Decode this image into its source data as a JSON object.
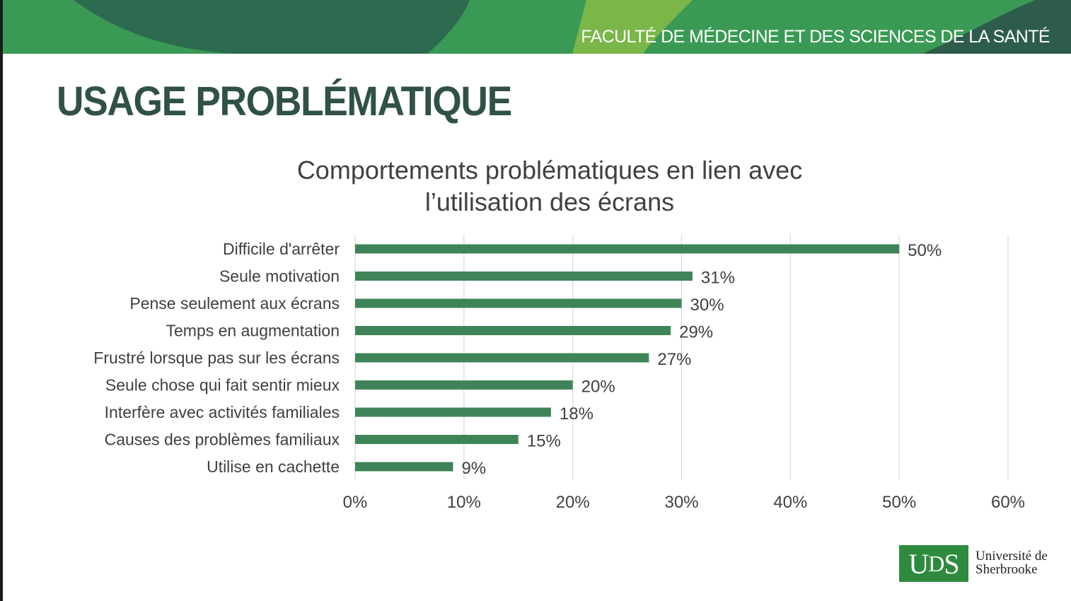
{
  "header": {
    "faculty_label": "FACULTÉ DE MÉDECINE ET DES SCIENCES DE LA SANTÉ"
  },
  "page_title": "USAGE PROBLÉMATIQUE",
  "colors": {
    "title": "#2f5148",
    "bar": "#3f8458",
    "banner_dark": "#2c6b4f",
    "banner_light": "#7ab648"
  },
  "chart_data": {
    "type": "bar",
    "orientation": "horizontal",
    "title_lines": [
      "Comportements problématiques en lien avec",
      "l’utilisation des écrans"
    ],
    "categories": [
      "Difficile d'arrêter",
      "Seule motivation",
      "Pense seulement aux écrans",
      "Temps en augmentation",
      "Frustré lorsque  pas sur les écrans",
      "Seule chose qui fait sentir mieux",
      "Interfère avec activités familiales",
      "Causes des problèmes familiaux",
      "Utilise en cachette"
    ],
    "values": [
      50,
      31,
      30,
      29,
      27,
      20,
      18,
      15,
      9
    ],
    "data_labels": [
      "50%",
      "31%",
      "30%",
      "29%",
      "27%",
      "20%",
      "18%",
      "15%",
      "9%"
    ],
    "xlim": [
      0,
      60
    ],
    "xticks": [
      "0%",
      "10%",
      "20%",
      "30%",
      "40%",
      "50%",
      "60%"
    ],
    "grid": true,
    "legend": "none"
  },
  "logo": {
    "mark_u": "U",
    "mark_d": "D",
    "mark_s": "S",
    "line1": "Université de",
    "line2": "Sherbrooke"
  }
}
